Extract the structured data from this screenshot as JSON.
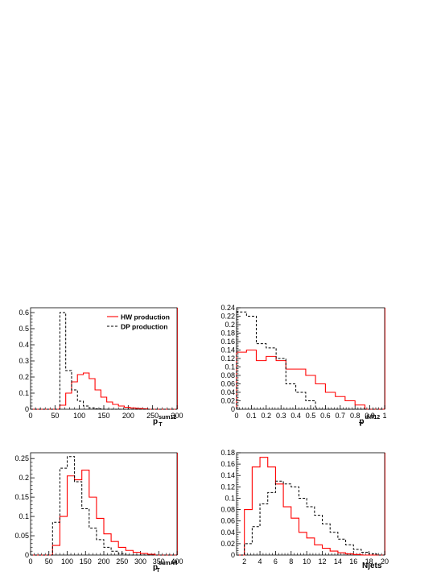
{
  "legend": {
    "entries": [
      {
        "label": "HW production",
        "color": "#ff0000",
        "style": "solid"
      },
      {
        "label": "DP production",
        "color": "#000000",
        "style": "dashed"
      }
    ]
  },
  "chart_data": [
    {
      "type": "histogram",
      "xlabel": {
        "main": "p",
        "sub": "T",
        "sup": "sum12"
      },
      "xlim": [
        0,
        300
      ],
      "ylim": [
        0,
        0.63
      ],
      "xticks": [
        0,
        50,
        100,
        150,
        200,
        250,
        300
      ],
      "yticks": [
        0,
        0.1,
        0.2,
        0.3,
        0.4,
        0.5,
        0.6
      ],
      "ytick_labels": [
        "0",
        "0.1",
        "0.2",
        "0.3",
        "0.4",
        "0.5",
        "0.6"
      ],
      "series": [
        {
          "name": "HW production",
          "color": "#ff0000",
          "dashed": false,
          "edges": [
            60,
            72,
            84,
            96,
            108,
            120,
            132,
            144,
            156,
            168,
            180,
            192,
            204,
            216,
            228,
            240
          ],
          "values": [
            0.025,
            0.1,
            0.17,
            0.215,
            0.225,
            0.19,
            0.12,
            0.075,
            0.045,
            0.03,
            0.02,
            0.012,
            0.008,
            0.005,
            0.003
          ]
        },
        {
          "name": "DP production",
          "color": "#000000",
          "dashed": true,
          "edges": [
            60,
            72,
            84,
            96,
            108,
            120,
            132,
            144
          ],
          "values": [
            0.6,
            0.24,
            0.12,
            0.05,
            0.02,
            0.008,
            0.003
          ]
        }
      ]
    },
    {
      "type": "histogram",
      "xlabel": {
        "main": "p",
        "sub": "T",
        "sup": "diff12"
      },
      "xlim": [
        0,
        1
      ],
      "ylim": [
        0,
        0.24
      ],
      "xticks": [
        0,
        0.1,
        0.2,
        0.3,
        0.4,
        0.5,
        0.6,
        0.7,
        0.8,
        0.9,
        1
      ],
      "xtick_labels": [
        "0",
        "0.1",
        "0.2",
        "0.3",
        "0.4",
        "0.5",
        "0.6",
        "0.7",
        "0.8",
        "0.9",
        "1"
      ],
      "yticks": [
        0,
        0.02,
        0.04,
        0.06,
        0.08,
        0.1,
        0.12,
        0.14,
        0.16,
        0.18,
        0.2,
        0.22,
        0.24
      ],
      "ytick_labels": [
        "0",
        "0.02",
        "0.04",
        "0.06",
        "0.08",
        "0.1",
        "0.12",
        "0.14",
        "0.16",
        "0.18",
        "0.2",
        "0.22",
        "0.24"
      ],
      "series": [
        {
          "name": "HW production",
          "color": "#ff0000",
          "dashed": false,
          "edges": [
            0,
            0.067,
            0.133,
            0.2,
            0.267,
            0.333,
            0.467,
            0.533,
            0.6,
            0.667,
            0.733,
            0.8,
            0.867
          ],
          "values": [
            0.135,
            0.14,
            0.115,
            0.125,
            0.115,
            0.095,
            0.08,
            0.06,
            0.04,
            0.03,
            0.02,
            0.01
          ]
        },
        {
          "name": "DP production",
          "color": "#000000",
          "dashed": true,
          "edges": [
            0,
            0.067,
            0.133,
            0.2,
            0.267,
            0.333,
            0.4,
            0.467,
            0.533
          ],
          "values": [
            0.23,
            0.22,
            0.155,
            0.145,
            0.12,
            0.06,
            0.04,
            0.02
          ]
        }
      ]
    },
    {
      "type": "histogram",
      "xlabel": {
        "main": "p",
        "sub": "T",
        "sup": "sumAll"
      },
      "xlim": [
        0,
        400
      ],
      "ylim": [
        0,
        0.265
      ],
      "xticks": [
        0,
        50,
        100,
        150,
        200,
        250,
        300,
        350,
        400
      ],
      "yticks": [
        0,
        0.05,
        0.1,
        0.15,
        0.2,
        0.25
      ],
      "ytick_labels": [
        "0",
        "0.05",
        "0.1",
        "0.15",
        "0.2",
        "0.25"
      ],
      "series": [
        {
          "name": "HW production",
          "color": "#ff0000",
          "dashed": false,
          "edges": [
            60,
            80,
            100,
            120,
            140,
            160,
            180,
            200,
            220,
            240,
            260,
            280,
            300,
            320,
            340
          ],
          "values": [
            0.025,
            0.1,
            0.205,
            0.195,
            0.22,
            0.15,
            0.095,
            0.055,
            0.035,
            0.02,
            0.012,
            0.007,
            0.004,
            0.002
          ]
        },
        {
          "name": "DP production",
          "color": "#000000",
          "dashed": true,
          "edges": [
            60,
            80,
            100,
            120,
            140,
            160,
            180,
            200,
            220,
            240,
            260
          ],
          "values": [
            0.085,
            0.225,
            0.255,
            0.19,
            0.12,
            0.07,
            0.04,
            0.02,
            0.01,
            0.004
          ]
        }
      ]
    },
    {
      "type": "histogram",
      "xlabel": {
        "main": "Njets",
        "sub": "",
        "sup": ""
      },
      "xlim": [
        1,
        20
      ],
      "ylim": [
        0,
        0.18
      ],
      "xticks": [
        2,
        4,
        6,
        8,
        10,
        12,
        14,
        16,
        18,
        20
      ],
      "yticks": [
        0,
        0.02,
        0.04,
        0.06,
        0.08,
        0.1,
        0.12,
        0.14,
        0.16,
        0.18
      ],
      "ytick_labels": [
        "0",
        "0.02",
        "0.04",
        "0.06",
        "0.08",
        "0.1",
        "0.12",
        "0.14",
        "0.16",
        "0.18"
      ],
      "series": [
        {
          "name": "HW production",
          "color": "#ff0000",
          "dashed": false,
          "edges": [
            2,
            3,
            4,
            5,
            6,
            7,
            8,
            9,
            10,
            11,
            12,
            13,
            14,
            15,
            16,
            17
          ],
          "values": [
            0.08,
            0.155,
            0.172,
            0.155,
            0.125,
            0.085,
            0.065,
            0.04,
            0.03,
            0.018,
            0.012,
            0.007,
            0.004,
            0.002,
            0.001
          ]
        },
        {
          "name": "DP production",
          "color": "#000000",
          "dashed": true,
          "edges": [
            2,
            3,
            4,
            5,
            6,
            7,
            8,
            9,
            10,
            11,
            12,
            13,
            14,
            15,
            16,
            17,
            18,
            19
          ],
          "values": [
            0.02,
            0.05,
            0.09,
            0.11,
            0.13,
            0.125,
            0.12,
            0.1,
            0.085,
            0.07,
            0.055,
            0.04,
            0.028,
            0.018,
            0.01,
            0.005,
            0.002
          ]
        }
      ]
    }
  ]
}
